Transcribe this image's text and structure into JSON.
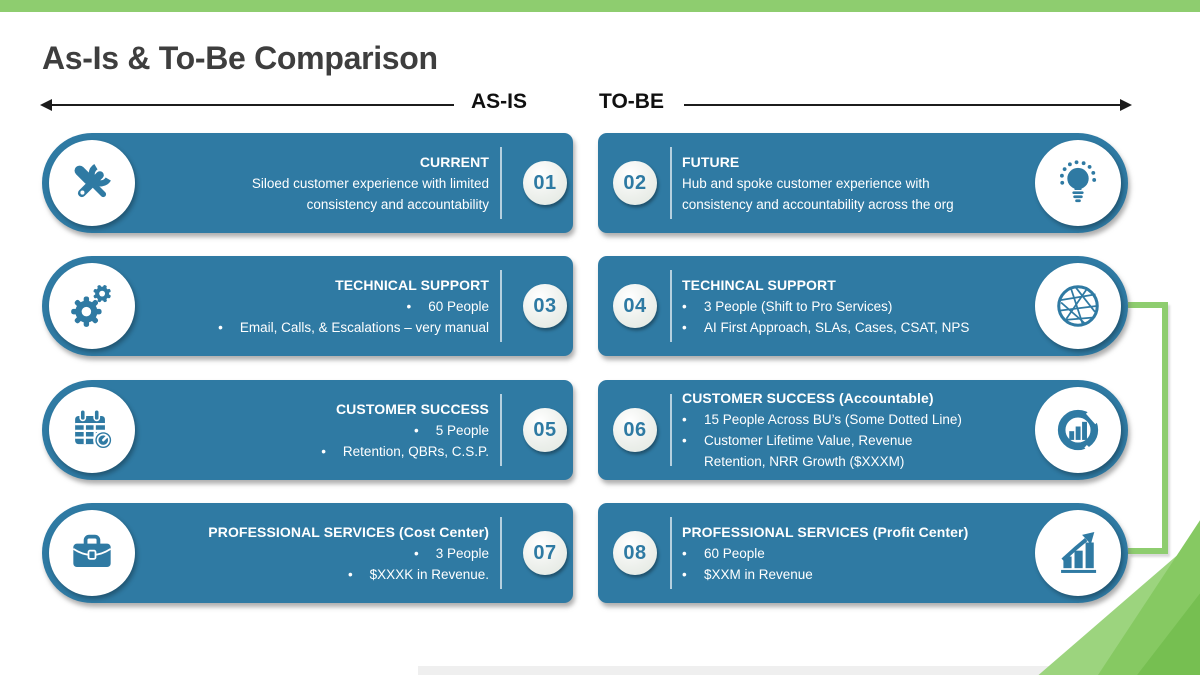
{
  "slide": {
    "title": "As-Is & To-Be Comparison",
    "as_is_label": "AS-IS",
    "to_be_label": "TO-BE"
  },
  "colors": {
    "card_blue": "#2F7AA3",
    "accent_green": "#8ECD6F",
    "triangle_greens": [
      "#9CD47E",
      "#86C962",
      "#76BF51"
    ],
    "title_gray": "#3E3E3E",
    "number_circle_bg": "#EDF0EC"
  },
  "icons": [
    "tools-icon",
    "lightbulb-icon",
    "gears-icon",
    "globe-icon",
    "calendar-icon",
    "donut-chart-icon",
    "briefcase-icon",
    "growth-chart-icon"
  ],
  "rows": [
    {
      "left": {
        "number": "01",
        "title": "CURRENT",
        "body": "Siloed customer experience with limited\nconsistency and accountability",
        "bullets": [],
        "icon": "tools-icon"
      },
      "right": {
        "number": "02",
        "title": "FUTURE",
        "body": "Hub and spoke customer experience with\nconsistency and accountability across the org",
        "bullets": [],
        "icon": "lightbulb-icon"
      }
    },
    {
      "left": {
        "number": "03",
        "title": "TECHNICAL SUPPORT",
        "body": "",
        "bullets": [
          "60 People",
          "Email, Calls, & Escalations – very manual"
        ],
        "icon": "gears-icon"
      },
      "right": {
        "number": "04",
        "title": "TECHINCAL SUPPORT",
        "body": "",
        "bullets": [
          "3 People (Shift to Pro Services)",
          "AI First Approach, SLAs, Cases, CSAT, NPS"
        ],
        "icon": "globe-icon"
      }
    },
    {
      "left": {
        "number": "05",
        "title": "CUSTOMER SUCCESS",
        "body": "",
        "bullets": [
          "5 People",
          "Retention, QBRs, C.S.P."
        ],
        "icon": "calendar-icon"
      },
      "right": {
        "number": "06",
        "title": "CUSTOMER SUCCESS (Accountable)",
        "body": "",
        "bullets": [
          "15 People Across BU’s (Some Dotted Line)",
          "Customer Lifetime Value, Revenue\nRetention, NRR Growth ($XXXM)"
        ],
        "icon": "donut-chart-icon"
      }
    },
    {
      "left": {
        "number": "07",
        "title": "PROFESSIONAL SERVICES (Cost Center)",
        "body": "",
        "bullets": [
          "3 People",
          "$XXXK in Revenue."
        ],
        "icon": "briefcase-icon"
      },
      "right": {
        "number": "08",
        "title": "PROFESSIONAL SERVICES (Profit Center)",
        "body": "",
        "bullets": [
          "60 People",
          "$XXM in Revenue"
        ],
        "icon": "growth-chart-icon"
      }
    }
  ]
}
